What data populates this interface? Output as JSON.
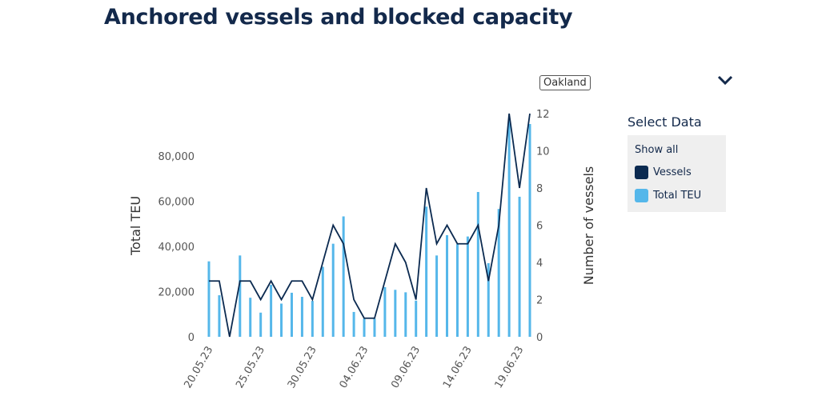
{
  "title": "Anchored vessels and blocked capacity",
  "region_button": "Oakland",
  "icons": {
    "dropdown": "chevron-down-icon"
  },
  "legend": {
    "title": "Select Data",
    "show_all": "Show all",
    "items": [
      {
        "label": "Vessels",
        "color": "#0b2a50"
      },
      {
        "label": "Total TEU",
        "color": "#55b7ea"
      }
    ]
  },
  "chart_data": {
    "type": "bar+line",
    "title": "",
    "ylabel_left": "Total TEU",
    "ylabel_right": "Number of vessels",
    "left_ticks": [
      "0",
      "20,000",
      "40,000",
      "60,000",
      "80,000"
    ],
    "left_tick_values": [
      0,
      20000,
      40000,
      60000,
      80000
    ],
    "right_ticks": [
      "0",
      "2",
      "4",
      "6",
      "8",
      "10",
      "12"
    ],
    "right_tick_values": [
      0,
      2,
      4,
      6,
      8,
      10,
      12
    ],
    "ylim_left": [
      0,
      98800
    ],
    "ylim_right": [
      0,
      12
    ],
    "x_tick_labels": [
      "20.05.23",
      "25.05.23",
      "30.05.23",
      "04.06.23",
      "09.06.23",
      "14.06.23",
      "19.06.23"
    ],
    "x": [
      "20.05.23",
      "21.05.23",
      "22.05.23",
      "23.05.23",
      "24.05.23",
      "25.05.23",
      "26.05.23",
      "27.05.23",
      "28.05.23",
      "29.05.23",
      "30.05.23",
      "31.05.23",
      "01.06.23",
      "02.06.23",
      "03.06.23",
      "04.06.23",
      "05.06.23",
      "06.06.23",
      "07.06.23",
      "08.06.23",
      "09.06.23",
      "10.06.23",
      "11.06.23",
      "12.06.23",
      "13.06.23",
      "14.06.23",
      "15.06.23",
      "16.06.23",
      "17.06.23",
      "18.06.23",
      "19.06.23",
      "20.06.23"
    ],
    "series": [
      {
        "name": "Total TEU",
        "type": "bar",
        "axis": "left",
        "color": "#55b7ea",
        "values": [
          33400,
          18400,
          0,
          36000,
          17300,
          10700,
          23000,
          14700,
          19500,
          17700,
          15900,
          31000,
          41200,
          53300,
          11000,
          8000,
          8000,
          22000,
          20800,
          19700,
          16000,
          57600,
          36000,
          45000,
          41000,
          44400,
          64100,
          32600,
          56600,
          96000,
          62000,
          94200
        ]
      },
      {
        "name": "Vessels",
        "type": "line",
        "axis": "right",
        "color": "#0b2a50",
        "values": [
          3,
          3,
          0,
          3,
          3,
          2,
          3,
          2,
          3,
          3,
          2,
          4,
          6,
          5,
          2,
          1,
          1,
          3,
          5,
          4,
          2,
          8,
          5,
          6,
          5,
          5,
          6,
          3,
          6,
          12,
          8,
          12
        ]
      }
    ],
    "grid": false,
    "legend": "right"
  }
}
